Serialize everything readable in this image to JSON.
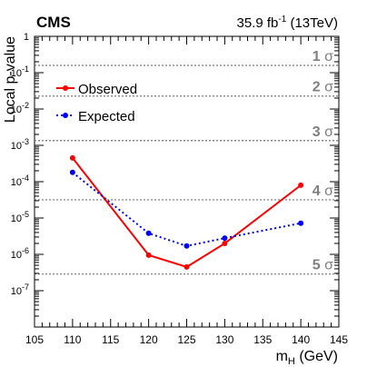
{
  "chart_data": {
    "type": "line",
    "experiment_label": "CMS",
    "luminosity_label": "35.9 fb",
    "luminosity_exponent": "-1",
    "energy_label": " (13TeV)",
    "xlabel_main": "m",
    "xlabel_sub": "H",
    "xlabel_unit": " (GeV)",
    "ylabel": "Local p-value",
    "y_scale": "log",
    "xlim": [
      105,
      145
    ],
    "ylim": [
      1e-08,
      1
    ],
    "x_ticks": [
      105,
      110,
      115,
      120,
      125,
      130,
      135,
      140,
      145
    ],
    "y_ticks": [
      {
        "value": 1,
        "base": "1",
        "exp": ""
      },
      {
        "value": 0.1,
        "base": "10",
        "exp": "-1"
      },
      {
        "value": 0.01,
        "base": "10",
        "exp": "-2"
      },
      {
        "value": 0.001,
        "base": "10",
        "exp": "-3"
      },
      {
        "value": 0.0001,
        "base": "10",
        "exp": "-4"
      },
      {
        "value": 1e-05,
        "base": "10",
        "exp": "-5"
      },
      {
        "value": 1e-06,
        "base": "10",
        "exp": "-6"
      },
      {
        "value": 1e-07,
        "base": "10",
        "exp": "-7"
      }
    ],
    "sigma_lines": [
      {
        "label": "1",
        "symbol": "σ",
        "p": 0.1587
      },
      {
        "label": "2",
        "symbol": "σ",
        "p": 0.02275
      },
      {
        "label": "3",
        "symbol": "σ",
        "p": 0.00135
      },
      {
        "label": "4",
        "symbol": "σ",
        "p": 3.17e-05
      },
      {
        "label": "5",
        "symbol": "σ",
        "p": 2.87e-07
      }
    ],
    "legend_position": "top-left",
    "series": [
      {
        "name": "Observed",
        "color": "#ff0000",
        "style": "solid",
        "x": [
          110,
          120,
          125,
          130,
          140
        ],
        "y": [
          0.00045,
          9.5e-07,
          4.5e-07,
          2e-06,
          8e-05
        ]
      },
      {
        "name": "Expected",
        "color": "#0000ff",
        "style": "dotted",
        "x": [
          110,
          120,
          125,
          130,
          140
        ],
        "y": [
          0.00018,
          3.8e-06,
          1.7e-06,
          2.8e-06,
          7.2e-06
        ]
      }
    ]
  }
}
